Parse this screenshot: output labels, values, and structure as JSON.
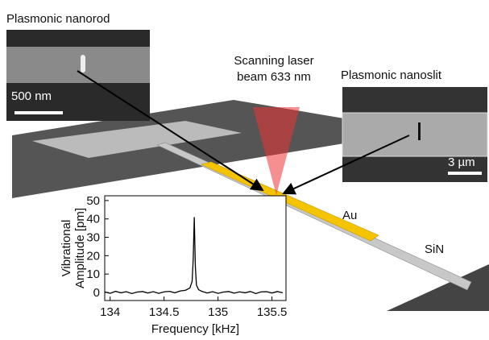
{
  "chart_data": {
    "type": "line",
    "xlabel": "Frequency [kHz]",
    "ylabel": [
      "Vibrational",
      "Amplitude [pm]"
    ],
    "x": [
      133.95,
      134.0,
      134.05,
      134.1,
      134.15,
      134.2,
      134.25,
      134.3,
      134.35,
      134.4,
      134.45,
      134.5,
      134.55,
      134.6,
      134.65,
      134.7,
      134.74,
      134.76,
      134.77,
      134.78,
      134.79,
      134.8,
      134.82,
      134.85,
      134.9,
      134.95,
      135.0,
      135.05,
      135.1,
      135.15,
      135.2,
      135.25,
      135.3,
      135.35,
      135.4,
      135.45,
      135.5,
      135.55,
      135.6
    ],
    "values": [
      0.3,
      -0.5,
      0.6,
      -0.2,
      0.4,
      -0.6,
      0.2,
      0.5,
      -0.3,
      0.4,
      -0.5,
      0.3,
      0.6,
      -0.2,
      0.8,
      1.2,
      2.5,
      6,
      18,
      41,
      14,
      4,
      1.5,
      0.6,
      -0.3,
      0.4,
      -0.5,
      0.2,
      0.5,
      -0.4,
      0.3,
      -0.2,
      0.5,
      -0.6,
      0.3,
      0.4,
      -0.3,
      0.5,
      -0.2
    ],
    "color": "#000000",
    "xlim": [
      133.95,
      135.63
    ],
    "xticks": [
      134,
      134.5,
      135,
      135.5
    ],
    "ylim": [
      -4.4,
      52.6
    ],
    "yticks": [
      0,
      10,
      20,
      30,
      40,
      50
    ]
  },
  "labels": {
    "nanorod": "Plasmonic nanorod",
    "nanorod_scale": "500 nm",
    "laser": [
      "Scanning laser",
      "beam 633 nm"
    ],
    "nanoslit": "Plasmonic nanoslit",
    "nanoslit_scale": "3 µm",
    "gold": "Au",
    "nitride": "SiN"
  }
}
